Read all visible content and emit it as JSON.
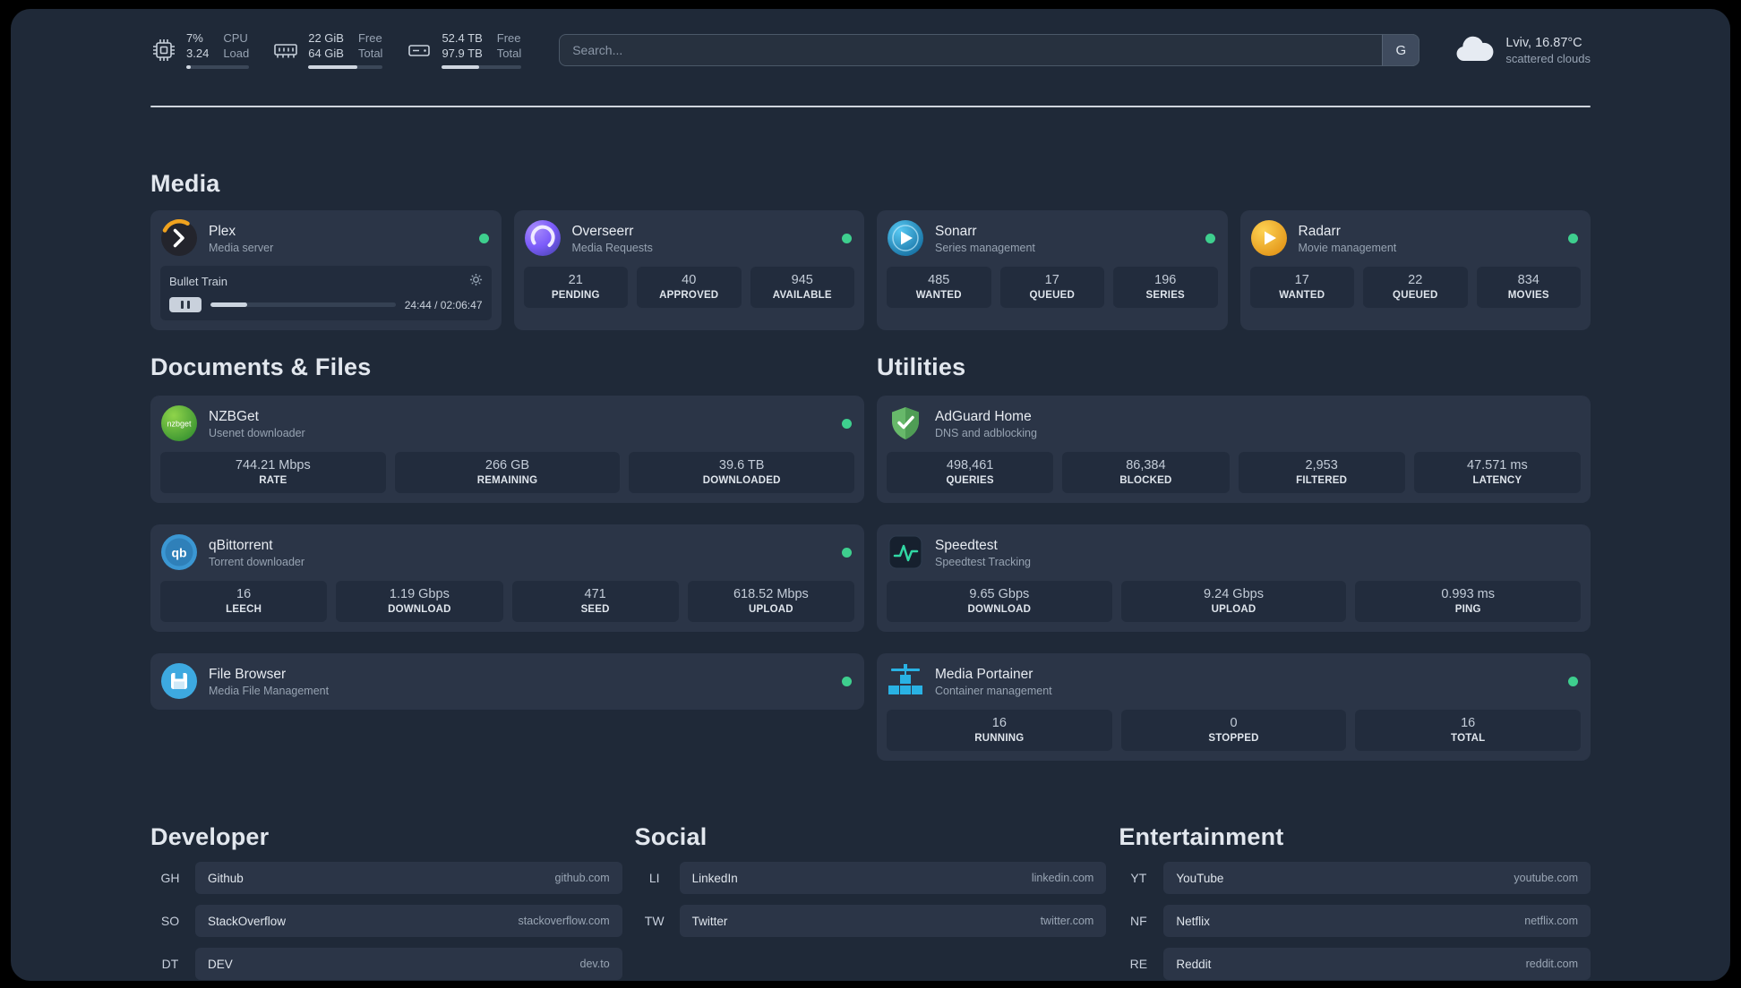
{
  "topbar": {
    "resources": [
      {
        "icon": "cpu",
        "v1": "7%",
        "v2": "3.24",
        "l1": "CPU",
        "l2": "Load",
        "progress": 7
      },
      {
        "icon": "memory",
        "v1": "22 GiB",
        "v2": "64 GiB",
        "l1": "Free",
        "l2": "Total",
        "progress": 66
      },
      {
        "icon": "disk",
        "v1": "52.4 TB",
        "v2": "97.9 TB",
        "l1": "Free",
        "l2": "Total",
        "progress": 47
      }
    ],
    "search": {
      "placeholder": "Search...",
      "button_label": "G"
    },
    "weather": {
      "location": "Lviv, 16.87°C",
      "condition": "scattered clouds"
    }
  },
  "groups": {
    "media": {
      "title": "Media",
      "services": [
        {
          "name": "Plex",
          "desc": "Media server",
          "online": true,
          "media": {
            "title": "Bullet Train",
            "time": "24:44 / 02:06:47",
            "progress": 20
          }
        },
        {
          "name": "Overseerr",
          "desc": "Media Requests",
          "online": true,
          "stats": [
            {
              "value": "21",
              "label": "PENDING"
            },
            {
              "value": "40",
              "label": "APPROVED"
            },
            {
              "value": "945",
              "label": "AVAILABLE"
            }
          ]
        },
        {
          "name": "Sonarr",
          "desc": "Series management",
          "online": true,
          "stats": [
            {
              "value": "485",
              "label": "WANTED"
            },
            {
              "value": "17",
              "label": "QUEUED"
            },
            {
              "value": "196",
              "label": "SERIES"
            }
          ]
        },
        {
          "name": "Radarr",
          "desc": "Movie management",
          "online": true,
          "stats": [
            {
              "value": "17",
              "label": "WANTED"
            },
            {
              "value": "22",
              "label": "QUEUED"
            },
            {
              "value": "834",
              "label": "MOVIES"
            }
          ]
        }
      ]
    },
    "documents": {
      "title": "Documents & Files",
      "services": [
        {
          "name": "NZBGet",
          "desc": "Usenet downloader",
          "online": true,
          "stats": [
            {
              "value": "744.21 Mbps",
              "label": "RATE"
            },
            {
              "value": "266 GB",
              "label": "REMAINING"
            },
            {
              "value": "39.6 TB",
              "label": "DOWNLOADED"
            }
          ]
        },
        {
          "name": "qBittorrent",
          "desc": "Torrent downloader",
          "online": true,
          "stats": [
            {
              "value": "16",
              "label": "LEECH"
            },
            {
              "value": "1.19 Gbps",
              "label": "DOWNLOAD"
            },
            {
              "value": "471",
              "label": "SEED"
            },
            {
              "value": "618.52 Mbps",
              "label": "UPLOAD"
            }
          ]
        },
        {
          "name": "File Browser",
          "desc": "Media File Management",
          "online": true
        }
      ]
    },
    "utilities": {
      "title": "Utilities",
      "services": [
        {
          "name": "AdGuard Home",
          "desc": "DNS and adblocking",
          "stats": [
            {
              "value": "498,461",
              "label": "QUERIES"
            },
            {
              "value": "86,384",
              "label": "BLOCKED"
            },
            {
              "value": "2,953",
              "label": "FILTERED"
            },
            {
              "value": "47.571 ms",
              "label": "LATENCY"
            }
          ]
        },
        {
          "name": "Speedtest",
          "desc": "Speedtest Tracking",
          "stats": [
            {
              "value": "9.65 Gbps",
              "label": "DOWNLOAD"
            },
            {
              "value": "9.24 Gbps",
              "label": "UPLOAD"
            },
            {
              "value": "0.993 ms",
              "label": "PING"
            }
          ]
        },
        {
          "name": "Media Portainer",
          "desc": "Container management",
          "online": true,
          "stats": [
            {
              "value": "16",
              "label": "RUNNING"
            },
            {
              "value": "0",
              "label": "STOPPED"
            },
            {
              "value": "16",
              "label": "TOTAL"
            }
          ]
        }
      ]
    }
  },
  "bookmarks": [
    {
      "title": "Developer",
      "items": [
        {
          "abbr": "GH",
          "name": "Github",
          "url": "github.com"
        },
        {
          "abbr": "SO",
          "name": "StackOverflow",
          "url": "stackoverflow.com"
        },
        {
          "abbr": "DT",
          "name": "DEV",
          "url": "dev.to"
        }
      ]
    },
    {
      "title": "Social",
      "items": [
        {
          "abbr": "LI",
          "name": "LinkedIn",
          "url": "linkedin.com"
        },
        {
          "abbr": "TW",
          "name": "Twitter",
          "url": "twitter.com"
        }
      ]
    },
    {
      "title": "Entertainment",
      "items": [
        {
          "abbr": "YT",
          "name": "YouTube",
          "url": "youtube.com"
        },
        {
          "abbr": "NF",
          "name": "Netflix",
          "url": "netflix.com"
        },
        {
          "abbr": "RE",
          "name": "Reddit",
          "url": "reddit.com"
        }
      ]
    }
  ],
  "colors": {
    "status_online": "#3ecf8e",
    "page_bg": "#1f2938",
    "card_bg": "#2b3547"
  }
}
